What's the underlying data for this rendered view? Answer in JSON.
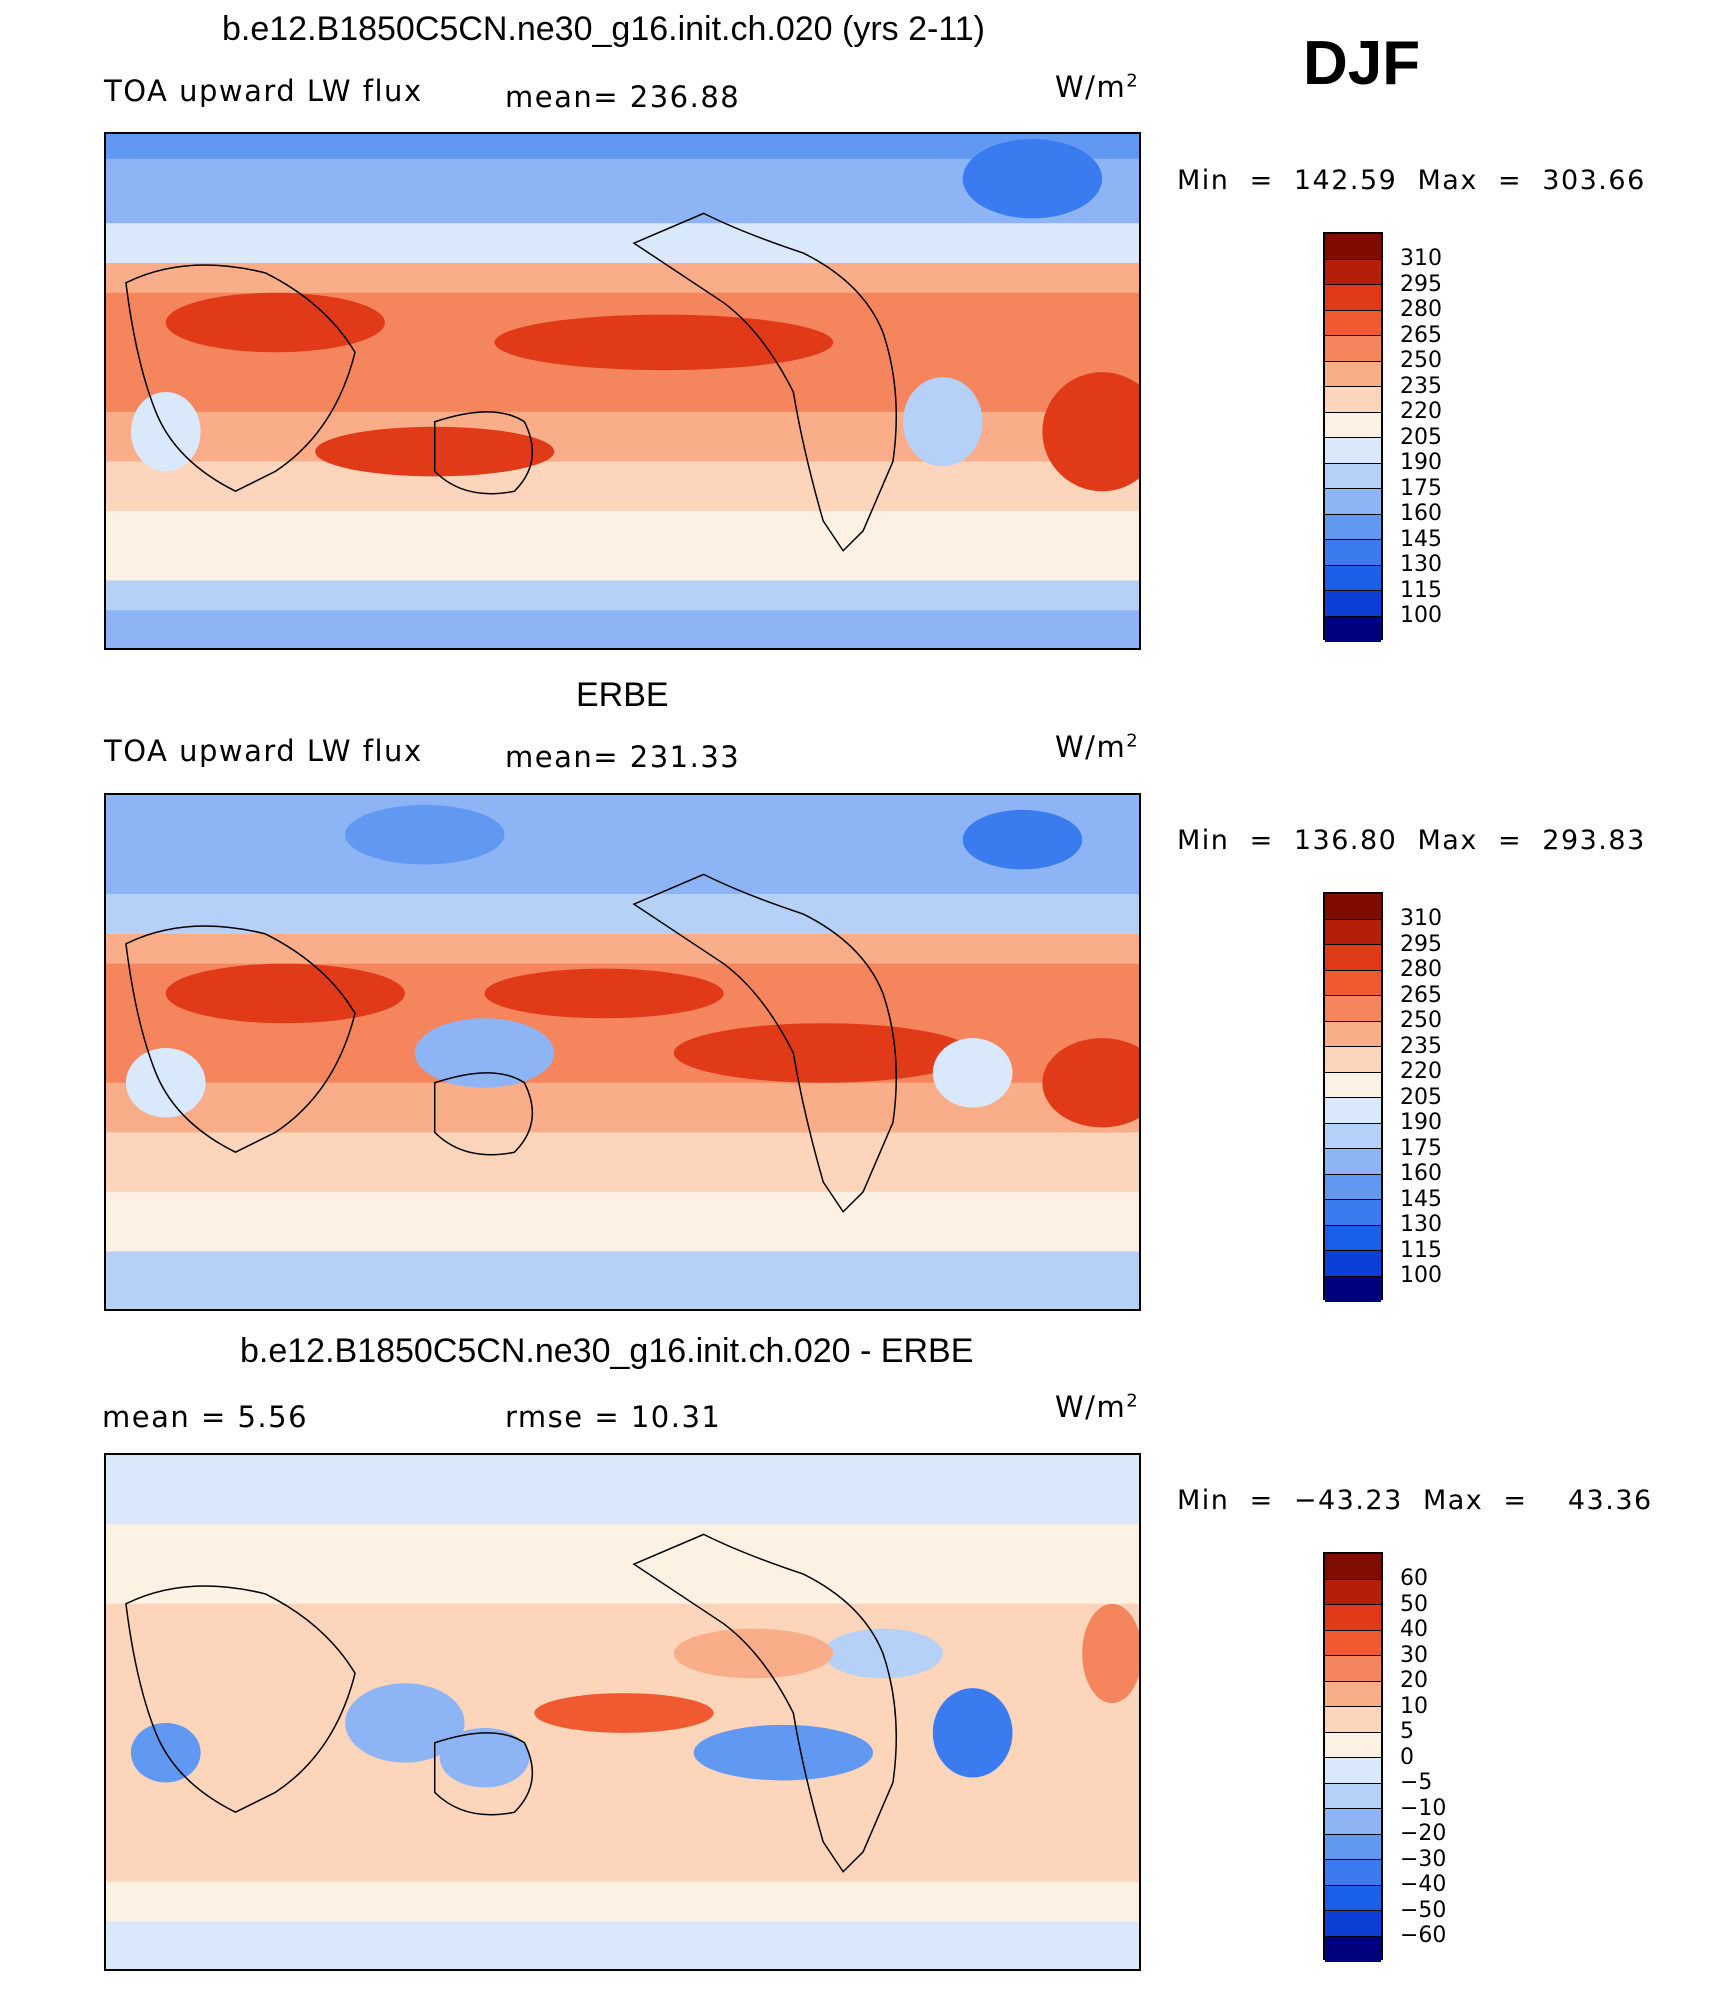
{
  "season": "DJF",
  "units": "W/m",
  "units_exp": "2",
  "colors": {
    "abs": [
      "#00007f",
      "#0a1fb0",
      "#0c3fd6",
      "#1a5fe8",
      "#3a7cf0",
      "#6098f2",
      "#8db5f6",
      "#b6d1f8",
      "#dae8fb",
      "#fdf1e4",
      "#fcd5bb",
      "#f9ad89",
      "#f5855c",
      "#f05a30",
      "#e03a18",
      "#b51f0a",
      "#800c00"
    ],
    "diff": [
      "#00007f",
      "#0a1fb0",
      "#0c3fd6",
      "#1a5fe8",
      "#3a7cf0",
      "#6098f2",
      "#8db5f6",
      "#b6d1f8",
      "#dae8fb",
      "#fdf1e4",
      "#fcd5bb",
      "#f9ad89",
      "#f5855c",
      "#f05a30",
      "#e03a18",
      "#b51f0a",
      "#800c00"
    ]
  },
  "panels": [
    {
      "title": "b.e12.B1850C5CN.ne30_g16.init.ch.020 (yrs 2-11)",
      "variable": "TOA upward LW flux",
      "stat1": "mean=  236.88",
      "stat2": "",
      "minmax": "Min  =  142.59  Max  =  303.66",
      "levels": [
        "310",
        "295",
        "280",
        "265",
        "250",
        "235",
        "220",
        "205",
        "190",
        "175",
        "160",
        "145",
        "130",
        "115",
        "100"
      ]
    },
    {
      "title": "ERBE",
      "variable": "TOA upward LW flux",
      "stat1": "mean=  231.33",
      "stat2": "",
      "minmax": "Min  =  136.80  Max  =  293.83",
      "levels": [
        "310",
        "295",
        "280",
        "265",
        "250",
        "235",
        "220",
        "205",
        "190",
        "175",
        "160",
        "145",
        "130",
        "115",
        "100"
      ]
    },
    {
      "title": "b.e12.B1850C5CN.ne30_g16.init.ch.020 - ERBE",
      "variable": "mean  =      5.56",
      "stat1": "rmse  =    10.31",
      "stat2": "",
      "minmax": "Min  =  −43.23  Max  =    43.36",
      "levels": [
        "60",
        "50",
        "40",
        "30",
        "20",
        "10",
        "5",
        "0",
        "−5",
        "−10",
        "−20",
        "−30",
        "−40",
        "−50",
        "−60"
      ]
    }
  ]
}
